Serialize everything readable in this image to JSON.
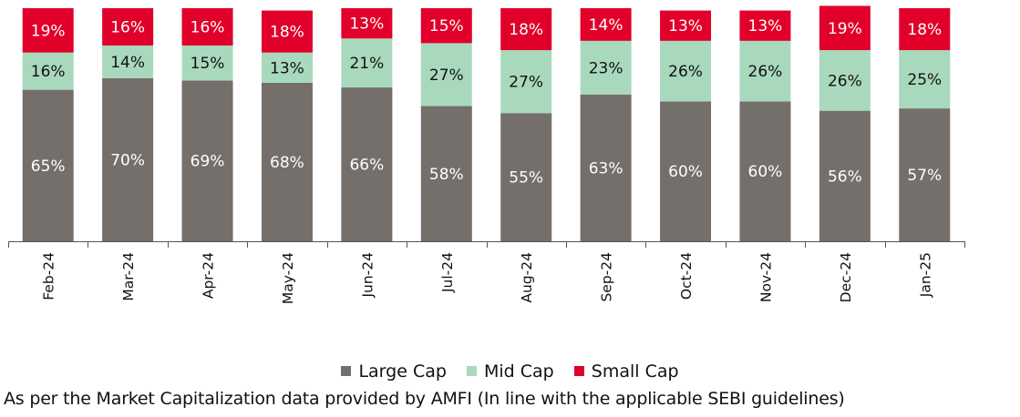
{
  "chart_data": {
    "type": "bar",
    "stacked": true,
    "categories": [
      "Feb-24",
      "Mar-24",
      "Apr-24",
      "May-24",
      "Jun-24",
      "Jul-24",
      "Aug-24",
      "Sep-24",
      "Oct-24",
      "Nov-24",
      "Dec-24",
      "Jan-25"
    ],
    "series": [
      {
        "name": "Large Cap",
        "color": "#756f6c",
        "label_color": "#ffffff",
        "values": [
          65,
          70,
          69,
          68,
          66,
          58,
          55,
          63,
          60,
          60,
          56,
          57
        ]
      },
      {
        "name": "Mid Cap",
        "color": "#a9d9bd",
        "label_color": "#111111",
        "values": [
          16,
          14,
          15,
          13,
          21,
          27,
          27,
          23,
          26,
          26,
          26,
          25
        ]
      },
      {
        "name": "Small Cap",
        "color": "#e0002a",
        "label_color": "#ffffff",
        "values": [
          19,
          16,
          16,
          18,
          13,
          15,
          18,
          14,
          13,
          13,
          19,
          18
        ]
      }
    ],
    "value_suffix": "%",
    "ylim": [
      0,
      100
    ],
    "legend_position": "bottom",
    "grid": false
  },
  "footnote": "As per the Market Capitalization data provided by AMFI (In line with the applicable SEBI guidelines)"
}
